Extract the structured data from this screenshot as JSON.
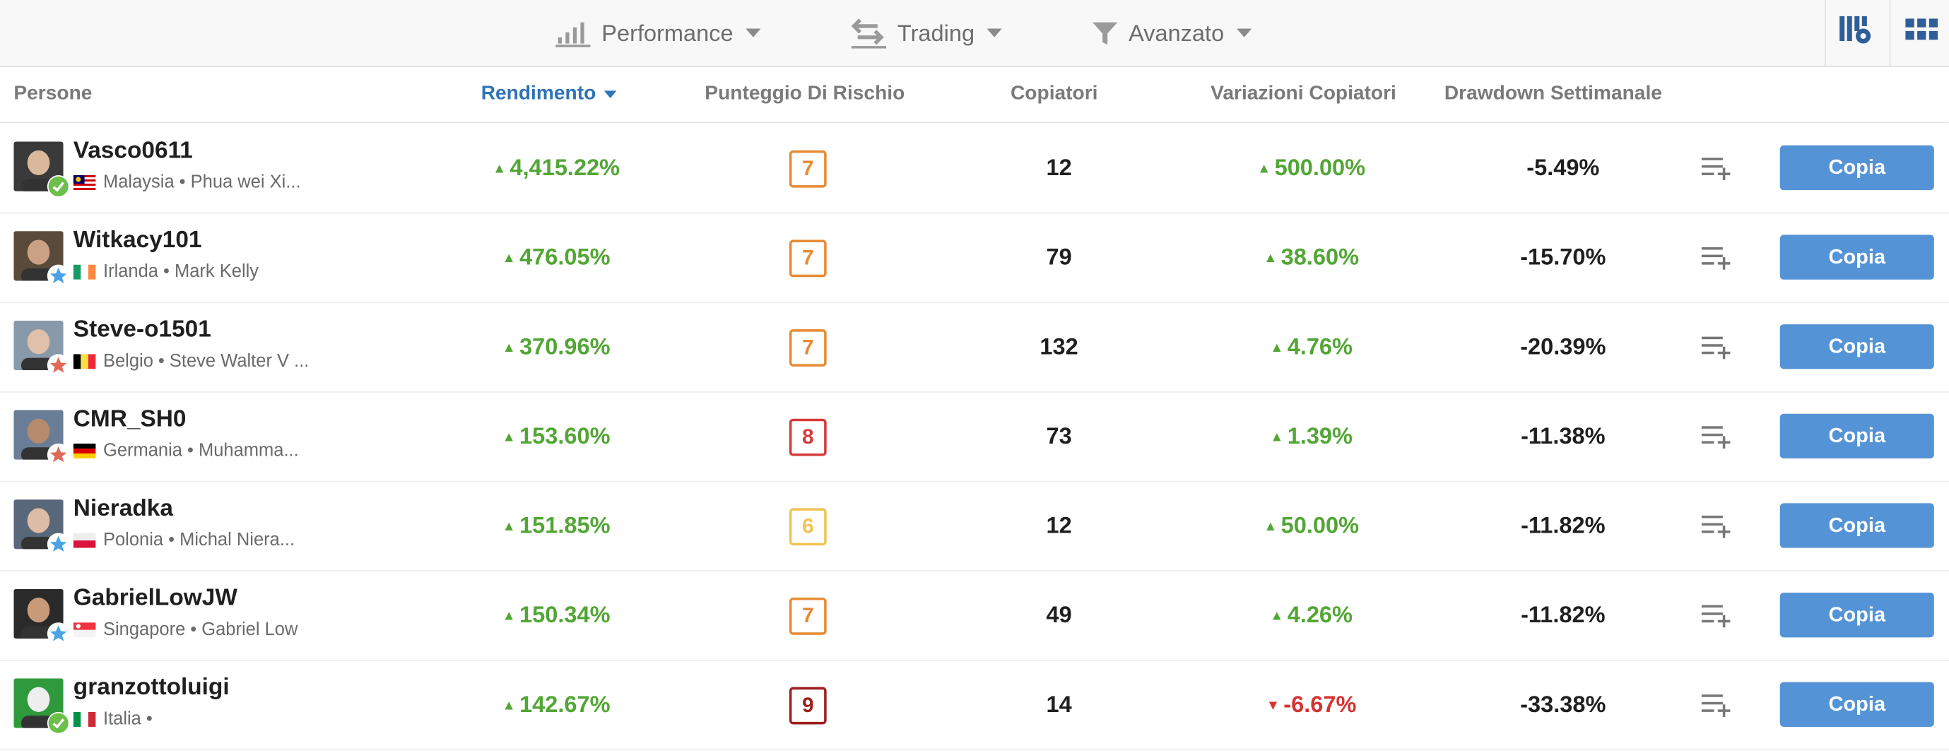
{
  "toolbar": {
    "performance_label": "Performance",
    "trading_label": "Trading",
    "advanced_label": "Avanzato",
    "chart_icon": "bar-chart-icon",
    "trading_icon": "swap-arrows-icon",
    "filter_icon": "filter-funnel-icon",
    "settings_icon": "grid-settings-icon",
    "grid_icon": "grid-view-icon"
  },
  "columns": {
    "people": "Persone",
    "return": "Rendimento",
    "risk": "Punteggio Di Rischio",
    "copiers": "Copiatori",
    "copier_changes": "Variazioni Copiatori",
    "drawdown": "Drawdown Settimanale"
  },
  "colors": {
    "gain": "#52a635",
    "loss": "#d63232",
    "accent": "#2f73b8",
    "button": "#5494d6",
    "risk_6": "#f1c352",
    "risk_7": "#e78a33",
    "risk_8": "#d63a3a",
    "risk_9": "#9e1f1f"
  },
  "rows": [
    {
      "username": "Vasco0611",
      "country": "Malaysia",
      "realname": "Phua wei Xi...",
      "badge": "verified-check-icon",
      "flag": "malaysia-flag-icon",
      "return": "4,415.22%",
      "return_dir": "up",
      "risk": "7",
      "copiers": "12",
      "copier_change": "500.00%",
      "copier_change_dir": "up",
      "drawdown": "-5.49%",
      "copy_label": "Copia"
    },
    {
      "username": "Witkacy101",
      "country": "Irlanda",
      "realname": "Mark Kelly",
      "badge": "blue-star-icon",
      "flag": "ireland-flag-icon",
      "return": "476.05%",
      "return_dir": "up",
      "risk": "7",
      "copiers": "79",
      "copier_change": "38.60%",
      "copier_change_dir": "up",
      "drawdown": "-15.70%",
      "copy_label": "Copia"
    },
    {
      "username": "Steve-o1501",
      "country": "Belgio",
      "realname": "Steve Walter V ...",
      "badge": "red-star-icon",
      "flag": "belgium-flag-icon",
      "return": "370.96%",
      "return_dir": "up",
      "risk": "7",
      "copiers": "132",
      "copier_change": "4.76%",
      "copier_change_dir": "up",
      "drawdown": "-20.39%",
      "copy_label": "Copia"
    },
    {
      "username": "CMR_SH0",
      "country": "Germania",
      "realname": "Muhamma...",
      "badge": "red-star-icon",
      "flag": "germany-flag-icon",
      "return": "153.60%",
      "return_dir": "up",
      "risk": "8",
      "copiers": "73",
      "copier_change": "1.39%",
      "copier_change_dir": "up",
      "drawdown": "-11.38%",
      "copy_label": "Copia"
    },
    {
      "username": "Nieradka",
      "country": "Polonia",
      "realname": "Michal Niera...",
      "badge": "blue-star-icon",
      "flag": "poland-flag-icon",
      "return": "151.85%",
      "return_dir": "up",
      "risk": "6",
      "copiers": "12",
      "copier_change": "50.00%",
      "copier_change_dir": "up",
      "drawdown": "-11.82%",
      "copy_label": "Copia"
    },
    {
      "username": "GabrielLowJW",
      "country": "Singapore",
      "realname": "Gabriel Low",
      "badge": "blue-star-icon",
      "flag": "singapore-flag-icon",
      "return": "150.34%",
      "return_dir": "up",
      "risk": "7",
      "copiers": "49",
      "copier_change": "4.26%",
      "copier_change_dir": "up",
      "drawdown": "-11.82%",
      "copy_label": "Copia"
    },
    {
      "username": "granzottoluigi",
      "country": "Italia",
      "realname": "",
      "badge": "verified-check-icon",
      "flag": "italy-flag-icon",
      "return": "142.67%",
      "return_dir": "up",
      "risk": "9",
      "copiers": "14",
      "copier_change": "-6.67%",
      "copier_change_dir": "down",
      "drawdown": "-33.38%",
      "copy_label": "Copia"
    }
  ]
}
